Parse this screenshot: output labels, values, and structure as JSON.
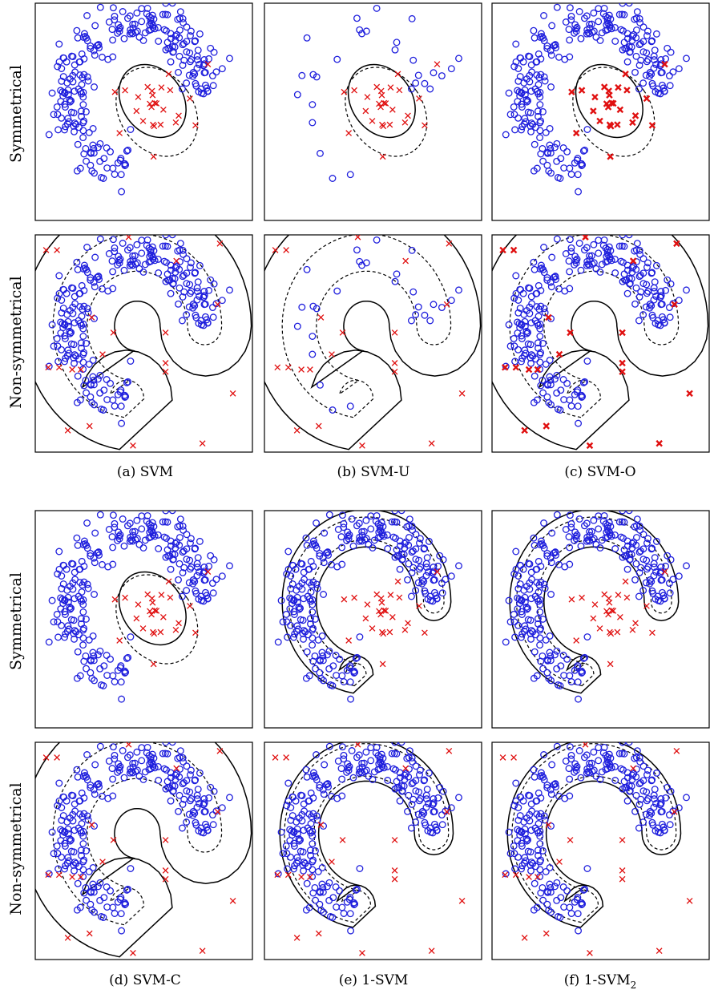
{
  "figure": {
    "row_labels": [
      "Symmetrical",
      "Non-symmetrical"
    ],
    "captions": [
      {
        "prefix": "(a) ",
        "name": "SVM",
        "sub": ""
      },
      {
        "prefix": "(b) ",
        "name": "SVM-U",
        "sub": ""
      },
      {
        "prefix": "(c) ",
        "name": "SVM-O",
        "sub": ""
      },
      {
        "prefix": "(d) ",
        "name": "SVM-C",
        "sub": ""
      },
      {
        "prefix": "(e) ",
        "name": "1-SVM",
        "sub": ""
      },
      {
        "prefix": "(f) ",
        "name": "1-SVM",
        "sub": "2"
      }
    ],
    "colors": {
      "positive_class": "#1f1fdd",
      "negative_class": "#e01010",
      "boundary": "#000000"
    },
    "markers": {
      "positive_class": "circle",
      "negative_class": "cross"
    },
    "boundary_styles": {
      "decision": "solid",
      "margin": "dashed"
    }
  },
  "chart_data": [
    {
      "type": "scatter",
      "panel": "a",
      "dataset": "Symmetrical",
      "method": "SVM",
      "positive_points": "dense",
      "negative_points": "dense",
      "boundary": "ellipse"
    },
    {
      "type": "scatter",
      "panel": "b",
      "dataset": "Symmetrical",
      "method": "SVM-U",
      "positive_points": "sparse",
      "negative_points": "dense",
      "boundary": "ellipse"
    },
    {
      "type": "scatter",
      "panel": "c",
      "dataset": "Symmetrical",
      "method": "SVM-O",
      "positive_points": "dense",
      "negative_points": "bold",
      "boundary": "ellipse"
    },
    {
      "type": "scatter",
      "panel": "d",
      "dataset": "Symmetrical",
      "method": "SVM-C",
      "positive_points": "dense",
      "negative_points": "dense",
      "boundary": "ellipse"
    },
    {
      "type": "scatter",
      "panel": "e",
      "dataset": "Symmetrical",
      "method": "1-SVM",
      "positive_points": "dense",
      "negative_points": "dense",
      "boundary": "c-shape"
    },
    {
      "type": "scatter",
      "panel": "f",
      "dataset": "Symmetrical",
      "method": "1-SVM2",
      "positive_points": "dense",
      "negative_points": "dense",
      "boundary": "c-shape"
    },
    {
      "type": "scatter",
      "panel": "a",
      "dataset": "Non-symmetrical",
      "method": "SVM",
      "positive_points": "dense",
      "negative_points": "dense",
      "boundary": "c-shape-wide"
    },
    {
      "type": "scatter",
      "panel": "b",
      "dataset": "Non-symmetrical",
      "method": "SVM-U",
      "positive_points": "sparse",
      "negative_points": "dense",
      "boundary": "c-shape-wide"
    },
    {
      "type": "scatter",
      "panel": "c",
      "dataset": "Non-symmetrical",
      "method": "SVM-O",
      "positive_points": "dense",
      "negative_points": "bold",
      "boundary": "c-shape-wide"
    },
    {
      "type": "scatter",
      "panel": "d",
      "dataset": "Non-symmetrical",
      "method": "SVM-C",
      "positive_points": "dense",
      "negative_points": "dense",
      "boundary": "c-shape-wide"
    },
    {
      "type": "scatter",
      "panel": "e",
      "dataset": "Non-symmetrical",
      "method": "1-SVM",
      "positive_points": "dense",
      "negative_points": "dense",
      "boundary": "c-shape-tight"
    },
    {
      "type": "scatter",
      "panel": "f",
      "dataset": "Non-symmetrical",
      "method": "1-SVM2",
      "positive_points": "dense",
      "negative_points": "dense",
      "boundary": "c-shape-tight"
    }
  ]
}
